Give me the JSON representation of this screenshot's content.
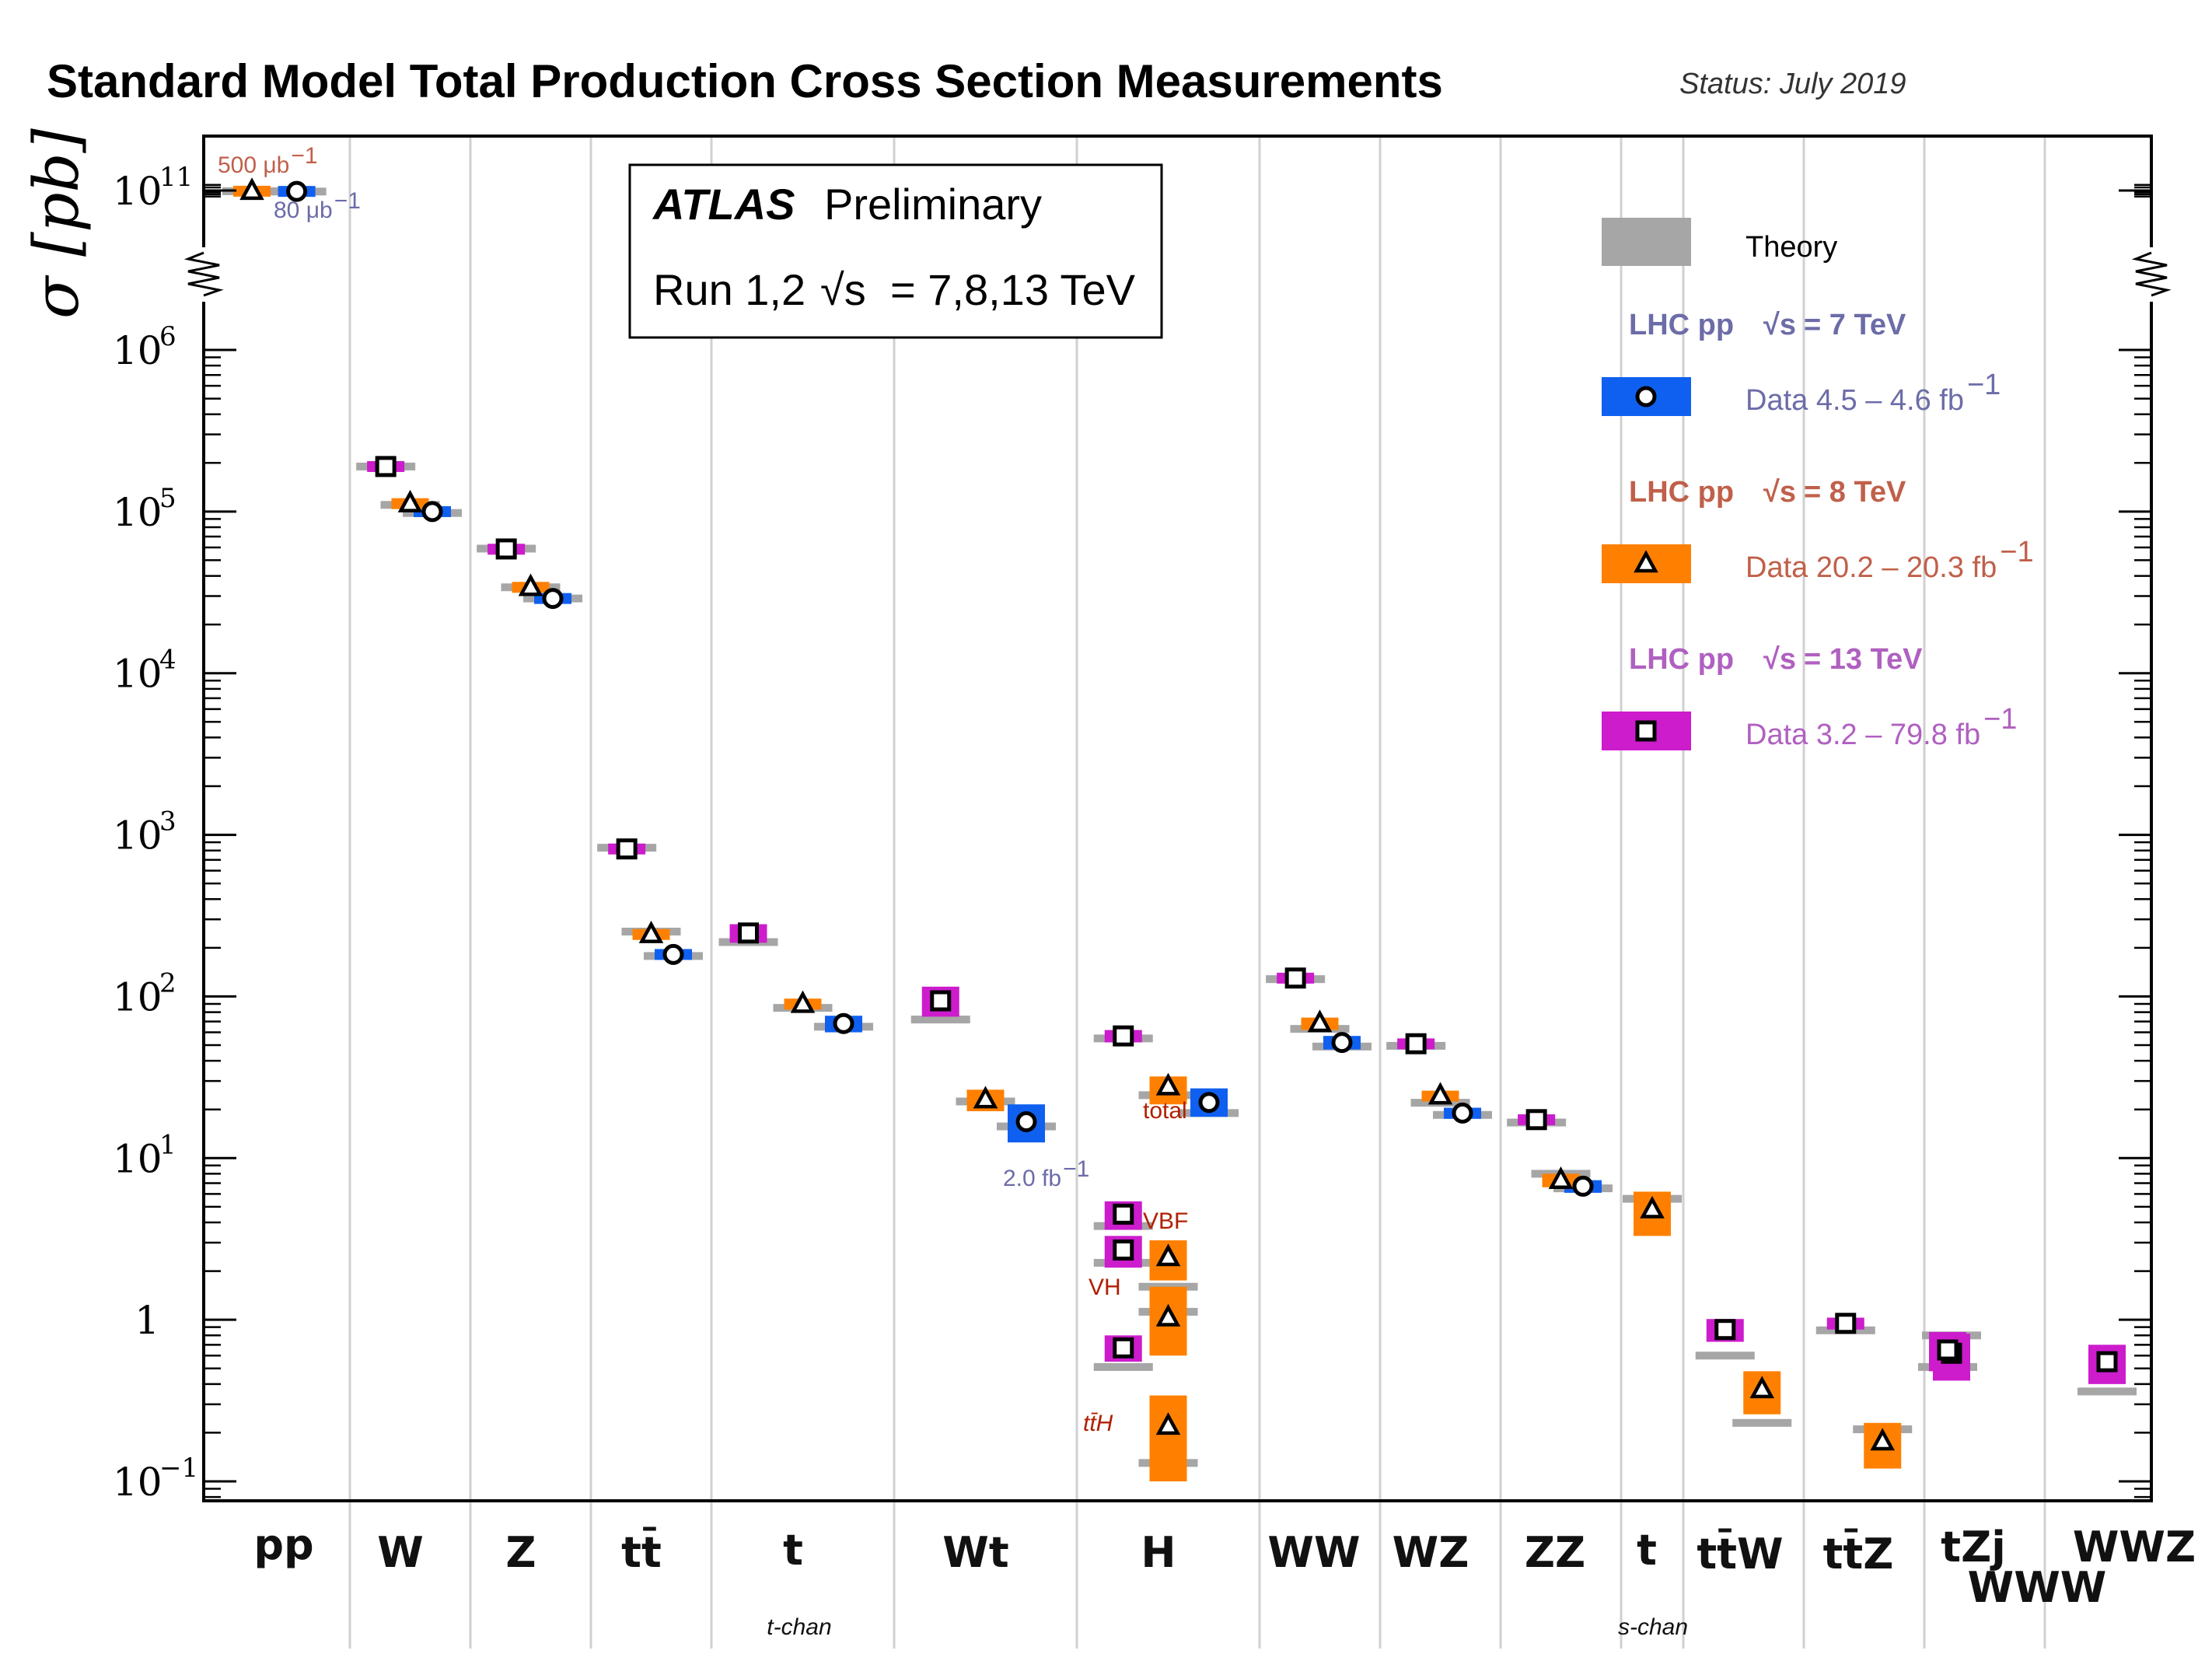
{
  "chart_data": {
    "type": "scatter",
    "title": "Standard Model Total Production Cross Section Measurements",
    "status": "Status: July 2019",
    "ylabel": "σ [pb]",
    "yscale": "log",
    "ylim": [
      0.06,
      160000000000.0
    ],
    "y_ticks": [
      {
        "base": "10",
        "exp": "11"
      },
      {
        "base": "10",
        "exp": "6"
      },
      {
        "base": "10",
        "exp": "5"
      },
      {
        "base": "10",
        "exp": "4"
      },
      {
        "base": "10",
        "exp": "3"
      },
      {
        "base": "10",
        "exp": "2"
      },
      {
        "base": "10",
        "exp": "1"
      },
      {
        "base": "1",
        "exp": ""
      },
      {
        "base": "10",
        "exp": "−1"
      }
    ],
    "atlas_label": "ATLAS",
    "atlas_preliminary": "Preliminary",
    "atlas_run": "Run 1,2",
    "atlas_energy": "= 7,8,13 TeV",
    "atlas_sqrt_s": "√s",
    "categories": [
      {
        "label": "pp",
        "sub": ""
      },
      {
        "label": "W",
        "sub": ""
      },
      {
        "label": "Z",
        "sub": ""
      },
      {
        "label": "tt̄",
        "sub": ""
      },
      {
        "label": "t",
        "sub": "t-chan"
      },
      {
        "label": "Wt",
        "sub": ""
      },
      {
        "label": "H",
        "sub": ""
      },
      {
        "label": "WW",
        "sub": ""
      },
      {
        "label": "WZ",
        "sub": ""
      },
      {
        "label": "ZZ",
        "sub": ""
      },
      {
        "label": "t",
        "sub": "s-chan"
      },
      {
        "label": "tt̄W",
        "sub": ""
      },
      {
        "label": "tt̄Z",
        "sub": ""
      },
      {
        "label": "tZj",
        "sub": ""
      },
      {
        "label": "WWW",
        "sub": ""
      },
      {
        "label": "WWZ",
        "sub": ""
      }
    ],
    "legend": {
      "theory": "Theory",
      "entries": [
        {
          "header": "LHC pp",
          "energy": "= 7 TeV",
          "sqrt_s": "√s",
          "data": "Data  4.5 – 4.6 fb",
          "sup": "−1",
          "marker": "circle",
          "color": "#0f60f0",
          "text_color": "#6c6ca8"
        },
        {
          "header": "LHC pp",
          "energy": "= 8 TeV",
          "sqrt_s": "√s",
          "data": "Data  20.2 – 20.3 fb",
          "sup": "−1",
          "marker": "triangle",
          "color": "#ff8000",
          "text_color": "#c0604a"
        },
        {
          "header": "LHC pp",
          "energy": "= 13 TeV",
          "sqrt_s": "√s",
          "data": "Data  3.2 – 79.8 fb",
          "sup": "−1",
          "marker": "square",
          "color": "#cc1ccc",
          "text_color": "#b060c0"
        }
      ]
    },
    "series": [
      {
        "name": "7 TeV",
        "marker": "circle",
        "color": "#0f60f0",
        "points": [
          {
            "cat": 0,
            "x": 0.7,
            "y": 95000000000.0,
            "lo": 90000000000.0,
            "hi": 100000000000.0,
            "theory": 94000000000.0
          },
          {
            "cat": 1,
            "x": 0.8,
            "y": 100000.0,
            "lo": 96000.0,
            "hi": 104000.0,
            "theory": 98000.0
          },
          {
            "cat": 2,
            "x": 0.8,
            "y": 29000.0,
            "lo": 28000.0,
            "hi": 30000.0,
            "theory": 29000.0
          },
          {
            "cat": 3,
            "x": 0.8,
            "y": 182,
            "lo": 175,
            "hi": 189,
            "theory": 178
          },
          {
            "cat": 4,
            "x": 0.8,
            "y": 68,
            "lo": 60,
            "hi": 76,
            "theory": 65
          },
          {
            "cat": 5,
            "x": 0.8,
            "y": 16.8,
            "lo": 12.5,
            "hi": 21.5,
            "theory": 15.7
          },
          {
            "cat": 6,
            "x": 0.8,
            "y": 22.1,
            "lo": 18,
            "hi": 27,
            "theory": 19
          },
          {
            "cat": 7,
            "x": 0.8,
            "y": 51.9,
            "lo": 47,
            "hi": 57,
            "theory": 49
          },
          {
            "cat": 8,
            "x": 0.8,
            "y": 19.0,
            "lo": 17.5,
            "hi": 20.5,
            "theory": 18.5
          },
          {
            "cat": 9,
            "x": 0.8,
            "y": 6.7,
            "lo": 6.1,
            "hi": 7.3,
            "theory": 6.5
          }
        ]
      },
      {
        "name": "8 TeV",
        "marker": "triangle",
        "color": "#ff8000",
        "points": [
          {
            "cat": 0,
            "x": 0.25,
            "y": 96000000000.0,
            "lo": 92000000000.0,
            "hi": 100000000000.0,
            "theory": 96000000000.0
          },
          {
            "cat": 1,
            "x": 0.5,
            "y": 112000.0,
            "lo": 108000.0,
            "hi": 116000.0,
            "theory": 110000.0
          },
          {
            "cat": 2,
            "x": 0.5,
            "y": 34000.0,
            "lo": 33000.0,
            "hi": 35000.0,
            "theory": 34000.0
          },
          {
            "cat": 3,
            "x": 0.5,
            "y": 242,
            "lo": 232,
            "hi": 252,
            "theory": 252
          },
          {
            "cat": 4,
            "x": 0.5,
            "y": 89.6,
            "lo": 83,
            "hi": 97,
            "theory": 85
          },
          {
            "cat": 5,
            "x": 0.5,
            "y": 23,
            "lo": 19.5,
            "hi": 26.5,
            "theory": 22.4
          },
          {
            "cat": 6,
            "x": 0.5,
            "y": 27.7,
            "lo": 21.5,
            "hi": 32,
            "theory": 24.5
          },
          {
            "cat": 6,
            "x": 0.5,
            "y": 2.43,
            "lo": 1.75,
            "hi": 3.1,
            "theory": 1.6
          },
          {
            "cat": 6,
            "x": 0.5,
            "y": 1.03,
            "lo": 0.6,
            "hi": 1.6,
            "theory": 1.12
          },
          {
            "cat": 6,
            "x": 0.5,
            "y": 0.22,
            "lo": 0.1,
            "hi": 0.34,
            "theory": 0.13
          },
          {
            "cat": 7,
            "x": 0.5,
            "y": 68.2,
            "lo": 62,
            "hi": 74,
            "theory": 63
          },
          {
            "cat": 8,
            "x": 0.5,
            "y": 24.3,
            "lo": 22.5,
            "hi": 26,
            "theory": 22
          },
          {
            "cat": 9,
            "x": 0.5,
            "y": 7.3,
            "lo": 6.6,
            "hi": 8.0,
            "theory": 8.0
          },
          {
            "cat": 10,
            "x": 0.5,
            "y": 4.8,
            "lo": 3.3,
            "hi": 6.2,
            "theory": 5.6
          },
          {
            "cat": 11,
            "x": 0.75,
            "y": 0.37,
            "lo": 0.26,
            "hi": 0.48,
            "theory": 0.23
          },
          {
            "cat": 12,
            "x": 0.75,
            "y": 0.176,
            "lo": 0.12,
            "hi": 0.23,
            "theory": 0.21
          }
        ]
      },
      {
        "name": "13 TeV",
        "marker": "square",
        "color": "#cc1ccc",
        "points": [
          {
            "cat": 1,
            "x": 0.17,
            "y": 190000.0,
            "lo": 185000.0,
            "hi": 195000.0,
            "theory": 190000.0
          },
          {
            "cat": 2,
            "x": 0.17,
            "y": 58700.0,
            "lo": 57000.0,
            "hi": 60000.0,
            "theory": 59000.0
          },
          {
            "cat": 3,
            "x": 0.17,
            "y": 818,
            "lo": 790,
            "hi": 846,
            "theory": 832
          },
          {
            "cat": 4,
            "x": 0.1,
            "y": 247,
            "lo": 215,
            "hi": 280,
            "theory": 217
          },
          {
            "cat": 5,
            "x": 0.17,
            "y": 94,
            "lo": 75,
            "hi": 115,
            "theory": 72
          },
          {
            "cat": 6,
            "x": 0.17,
            "y": 57,
            "lo": 52,
            "hi": 62,
            "theory": 55
          },
          {
            "cat": 6,
            "x": 0.17,
            "y": 4.5,
            "lo": 3.6,
            "hi": 5.4,
            "theory": 3.8
          },
          {
            "cat": 6,
            "x": 0.17,
            "y": 2.7,
            "lo": 2.1,
            "hi": 3.3,
            "theory": 2.25
          },
          {
            "cat": 6,
            "x": 0.17,
            "y": 0.67,
            "lo": 0.55,
            "hi": 0.8,
            "theory": 0.51
          },
          {
            "cat": 7,
            "x": 0.17,
            "y": 130,
            "lo": 123,
            "hi": 137,
            "theory": 128
          },
          {
            "cat": 8,
            "x": 0.17,
            "y": 51,
            "lo": 48,
            "hi": 54,
            "theory": 49.5
          },
          {
            "cat": 9,
            "x": 0.17,
            "y": 17.3,
            "lo": 16.3,
            "hi": 18.3,
            "theory": 16.6
          },
          {
            "cat": 11,
            "x": 0.25,
            "y": 0.87,
            "lo": 0.73,
            "hi": 1.01,
            "theory": 0.6
          },
          {
            "cat": 12,
            "x": 0.25,
            "y": 0.95,
            "lo": 0.87,
            "hi": 1.03,
            "theory": 0.86
          },
          {
            "cat": 13,
            "x": 0.25,
            "y": 0.62,
            "lo": 0.42,
            "hi": 0.82,
            "theory": 0.8
          },
          {
            "cat": 14,
            "x": 0.0,
            "y": 0.65,
            "lo": 0.48,
            "hi": 0.84,
            "theory": 0.51
          },
          {
            "cat": 15,
            "x": 0.0,
            "y": 0.55,
            "lo": 0.4,
            "hi": 0.7,
            "theory": 0.36
          }
        ]
      }
    ],
    "annotations": [
      {
        "text": "500 μb",
        "sup": "−1",
        "color": "#c0604a"
      },
      {
        "text": "80 μb",
        "sup": "−1",
        "color": "#6c6ca8"
      },
      {
        "text": "2.0 fb",
        "sup": "−1",
        "color": "#6c6ca8"
      },
      {
        "text": "total",
        "sup": "",
        "color": "#b02000"
      },
      {
        "text": "VBF",
        "sup": "",
        "color": "#b02000"
      },
      {
        "text": "VH",
        "sup": "",
        "color": "#b02000"
      },
      {
        "text": "tt̄H",
        "sup": "",
        "color": "#b02000"
      }
    ]
  }
}
